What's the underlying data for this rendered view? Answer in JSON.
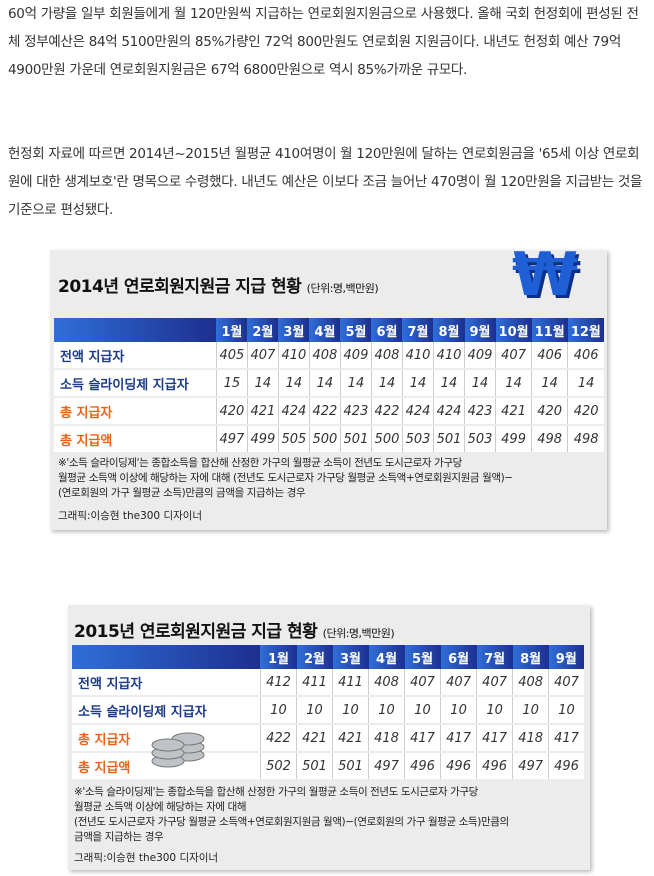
{
  "article": {
    "paragraphs": [
      "60억 가량을 일부 회원들에게 월 120만원씩 지급하는 연로회원지원금으로 사용했다. 올해 국회 헌정회에 편성된 전체 정부예산은 84억 5100만원의 85%가량인 72억 800만원도 연로회원 지원금이다. 내년도 헌정회 예산 79억 4900만원 가운데 연로회원지원금은 67억 6800만원으로 역시 85%가까운 규모다.",
      "헌정회 자료에 따르면 2014년~2015년 월평균 410여명이 월 120만원에 달하는 연로회원금을 '65세 이상 연로회원에 대한 생계보호'란 명목으로 수령했다. 내년도 예산은 이보다 조금 늘어난 470명이 월 120만원을 지급받는 것을 기준으로 편성됐다."
    ]
  },
  "tables": [
    {
      "title": "2014년 연로회원지원금 지급 현황",
      "unit": "(단위:명,백만원)",
      "icon": "won-sign-icon",
      "months": [
        "1월",
        "2월",
        "3월",
        "4월",
        "5월",
        "6월",
        "7월",
        "8월",
        "9월",
        "10월",
        "11월",
        "12월"
      ],
      "rows": [
        {
          "label": "전액 지급자",
          "color": "blue",
          "values": [
            405,
            407,
            410,
            408,
            409,
            408,
            410,
            410,
            409,
            407,
            406,
            406
          ]
        },
        {
          "label": "소득 슬라이딩제 지급자",
          "color": "blue",
          "values": [
            15,
            14,
            14,
            14,
            14,
            14,
            14,
            14,
            14,
            14,
            14,
            14
          ]
        },
        {
          "label": "총 지급자",
          "color": "orange",
          "values": [
            420,
            421,
            424,
            422,
            423,
            422,
            424,
            424,
            423,
            421,
            420,
            420
          ]
        },
        {
          "label": "총 지급액",
          "color": "orange",
          "values": [
            497,
            499,
            505,
            500,
            501,
            500,
            503,
            501,
            503,
            499,
            498,
            498
          ]
        }
      ],
      "note": [
        "※'소득 슬라이딩제'는 종합소득을 합산해 산정한 가구의 월평균 소득이 전년도 도시근로자 가구당",
        "월평균 소득액 이상에 해당하는 자에 대해 (전년도 도시근로자 가구당 월평균 소득액+연로회원지원금 월액)−",
        "(연로회원의 가구 월평균 소득)만큼의 금액을 지급하는 경우"
      ],
      "credit": "그래픽:이승현 the300 디자이너"
    },
    {
      "title": "2015년 연로회원지원금 지급 현황",
      "unit": "(단위:명,백만원)",
      "icon": "coins-icon",
      "months": [
        "1월",
        "2월",
        "3월",
        "4월",
        "5월",
        "6월",
        "7월",
        "8월",
        "9월"
      ],
      "rows": [
        {
          "label": "전액 지급자",
          "color": "blue",
          "values": [
            412,
            411,
            411,
            408,
            407,
            407,
            407,
            408,
            407
          ]
        },
        {
          "label": "소득 슬라이딩제 지급자",
          "color": "blue",
          "values": [
            10,
            10,
            10,
            10,
            10,
            10,
            10,
            10,
            10
          ]
        },
        {
          "label": "총 지급자",
          "color": "orange",
          "values": [
            422,
            421,
            421,
            418,
            417,
            417,
            417,
            418,
            417
          ]
        },
        {
          "label": "총 지급액",
          "color": "orange",
          "values": [
            502,
            501,
            501,
            497,
            496,
            496,
            496,
            497,
            496
          ]
        }
      ],
      "note": [
        "※'소득 슬라이딩제'는 종합소득을 합산해 산정한 가구의 월평균 소득이 전년도 도시근로자 가구당",
        "월평균 소득액 이상에 해당하는 자에 대해",
        "(전년도 도시근로자 가구당 월평균 소득액+연로회원지원금 월액)−(연로회원의 가구 월평균 소득)만큼의",
        "금액을 지급하는 경우"
      ],
      "credit": "그래픽:이승현 the300 디자이너"
    }
  ],
  "colors": {
    "header_start": "#2f6fd8",
    "header_end": "#1d2f8f",
    "blue_label": "#1b3a8a",
    "orange_label": "#e8621a"
  }
}
